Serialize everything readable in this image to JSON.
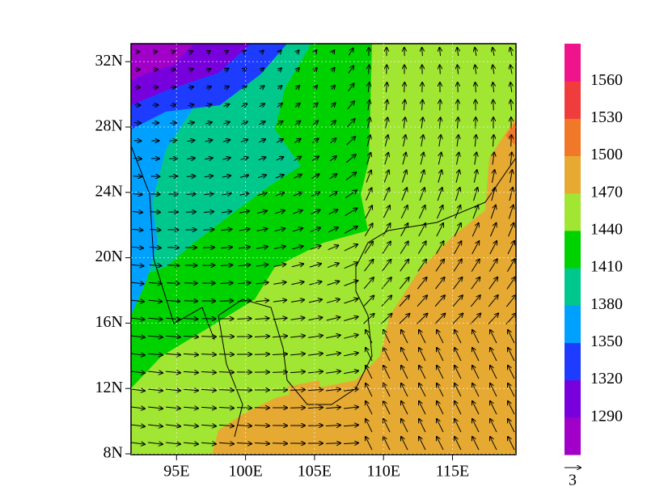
{
  "map": {
    "xaxis": {
      "lim": [
        91.7,
        119.6
      ],
      "ticks": [
        {
          "value": 95,
          "label": "95E"
        },
        {
          "value": 100,
          "label": "100E"
        },
        {
          "value": 105,
          "label": "105E"
        },
        {
          "value": 110,
          "label": "110E"
        },
        {
          "value": 115,
          "label": "115E"
        }
      ]
    },
    "yaxis": {
      "lim": [
        7.95,
        33.1
      ],
      "ticks": [
        {
          "value": 8,
          "label": "8N"
        },
        {
          "value": 12,
          "label": "12N"
        },
        {
          "value": 16,
          "label": "16N"
        },
        {
          "value": 20,
          "label": "20N"
        },
        {
          "value": 24,
          "label": "24N"
        },
        {
          "value": 28,
          "label": "28N"
        },
        {
          "value": 32,
          "label": "32N"
        }
      ]
    },
    "colorbar": {
      "levels": [
        1290,
        1320,
        1350,
        1380,
        1410,
        1440,
        1470,
        1500,
        1530,
        1560
      ],
      "colors": [
        "#a000c8",
        "#7800dc",
        "#1e3cff",
        "#00a0ff",
        "#00c88c",
        "#00d200",
        "#a0e632",
        "#e6aa32",
        "#f07828",
        "#f03c3c",
        "#f0148c"
      ]
    },
    "reference_vector": 3
  }
}
